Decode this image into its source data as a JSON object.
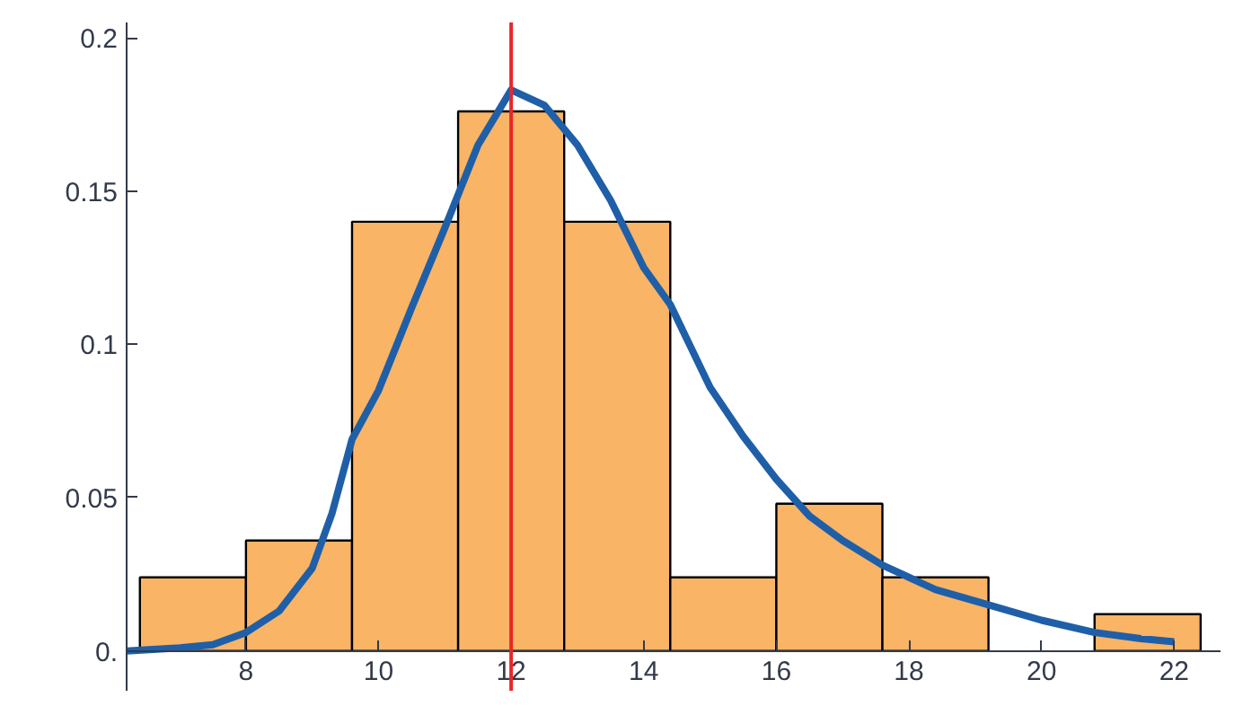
{
  "chart_data": {
    "type": "histogram",
    "bins": [
      6.4,
      8,
      9.6,
      11.2,
      12.8,
      14.4,
      16,
      17.6,
      19.2,
      20.8,
      22.4
    ],
    "values": [
      0.024,
      0.036,
      0.14,
      0.176,
      0.14,
      0.024,
      0.048,
      0.024,
      0,
      0.012
    ],
    "color": "#f9b466",
    "series": [
      {
        "type": "line",
        "color": "#1f5fa8",
        "x": [
          6.2,
          7,
          7.5,
          8,
          8.5,
          9,
          9.3,
          9.6,
          10,
          10.5,
          11,
          11.5,
          12,
          12.5,
          13,
          13.5,
          14,
          14.4,
          15,
          15.5,
          16,
          16.5,
          17,
          17.6,
          18.4,
          19.2,
          20,
          20.8,
          21.5,
          22
        ],
        "values": [
          0,
          0.001,
          0.002,
          0.006,
          0.013,
          0.027,
          0.045,
          0.069,
          0.085,
          0.112,
          0.138,
          0.165,
          0.183,
          0.178,
          0.165,
          0.147,
          0.125,
          0.113,
          0.086,
          0.07,
          0.056,
          0.044,
          0.036,
          0.028,
          0.02,
          0.015,
          0.01,
          0.006,
          0.004,
          0.003
        ]
      }
    ],
    "ref_lines": [
      {
        "axis": "x",
        "value": 12,
        "color": "#e8262a"
      }
    ],
    "xlim": [
      6.2,
      22.7
    ],
    "ylim": [
      -0.013,
      0.205
    ],
    "xticks": [
      8,
      10,
      12,
      14,
      16,
      18,
      20,
      22
    ],
    "yticks": [
      {
        "value": 0,
        "label": "0."
      },
      0.05,
      0.1,
      0.15,
      0.2
    ],
    "grid": false
  }
}
